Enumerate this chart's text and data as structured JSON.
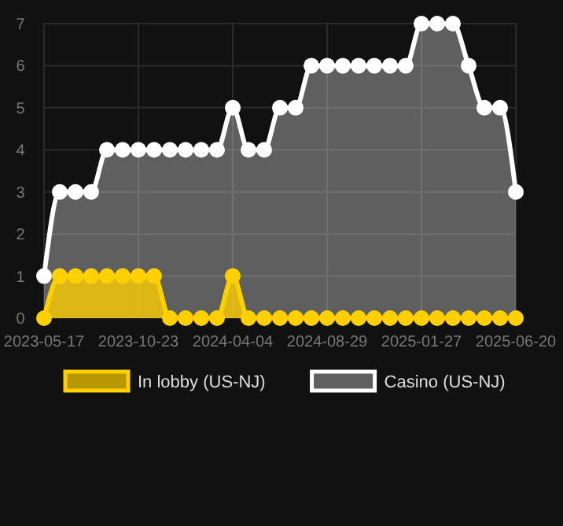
{
  "chart_data": {
    "type": "area",
    "categories": [
      "2023-05-17",
      null,
      null,
      null,
      null,
      null,
      "2023-10-23",
      null,
      null,
      null,
      null,
      null,
      "2024-04-04",
      null,
      null,
      null,
      null,
      null,
      "2024-08-29",
      null,
      null,
      null,
      null,
      null,
      "2025-01-27",
      null,
      null,
      null,
      null,
      null,
      "2025-06-20"
    ],
    "series": [
      {
        "name": "In lobby (US-NJ)",
        "color": "#ffd000",
        "values": [
          0,
          1,
          1,
          1,
          1,
          1,
          1,
          1,
          0,
          0,
          0,
          0,
          1,
          0,
          0,
          0,
          0,
          0,
          0,
          0,
          0,
          0,
          0,
          0,
          0,
          0,
          0,
          0,
          0,
          0,
          0
        ]
      },
      {
        "name": "Casino (US-NJ)",
        "color": "#ffffff",
        "values": [
          1,
          3,
          3,
          3,
          4,
          4,
          4,
          4,
          4,
          4,
          4,
          4,
          5,
          4,
          4,
          5,
          5,
          6,
          6,
          6,
          6,
          6,
          6,
          6,
          7,
          7,
          7,
          6,
          5,
          5,
          3
        ]
      }
    ],
    "ylim": [
      0,
      7
    ],
    "yticks": [
      0,
      1,
      2,
      3,
      4,
      5,
      6,
      7
    ],
    "grid": true,
    "legend": "bottom",
    "marker": "circle"
  }
}
